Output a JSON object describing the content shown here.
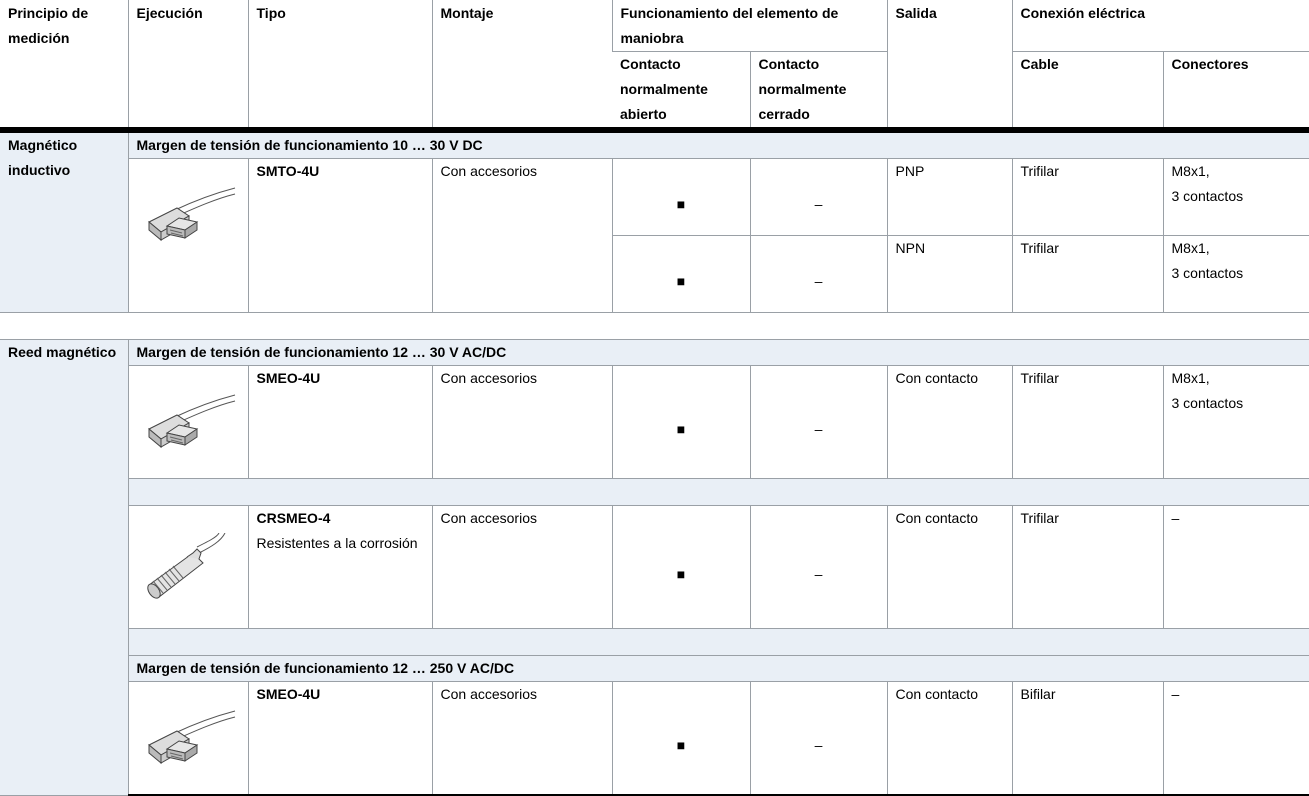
{
  "header": {
    "columns": [
      "Principio de medición",
      "Ejecución",
      "Tipo",
      "Montaje",
      "Funcionamiento del elemento de maniobra",
      "Salida",
      "Conexión eléctrica"
    ],
    "subcolumns": [
      "Contacto normalmente abierto",
      "Contacto normalmente cerrado",
      "Cable",
      "Conectores"
    ]
  },
  "sections": [
    {
      "principle": "Magnético inductivo",
      "groups": [
        {
          "voltage": "Margen de tensión de funcionamiento 10 … 30 V DC",
          "products": [
            {
              "type": "SMTO-4U",
              "mounting": "Con accesorios",
              "variants": [
                {
                  "no_contact": "■",
                  "nc_contact": "–",
                  "output": "PNP",
                  "cable": "Trifilar",
                  "connector": "M8x1,\n3 contactos"
                },
                {
                  "no_contact": "■",
                  "nc_contact": "–",
                  "output": "NPN",
                  "cable": "Trifilar",
                  "connector": "M8x1,\n3 contactos"
                }
              ]
            }
          ]
        }
      ]
    },
    {
      "principle": "Reed magnético",
      "groups": [
        {
          "voltage": "Margen de tensión de funcionamiento 12 … 30 V AC/DC",
          "products": [
            {
              "type": "SMEO-4U",
              "mounting": "Con accesorios",
              "variants": [
                {
                  "no_contact": "■",
                  "nc_contact": "–",
                  "output": "Con contacto",
                  "cable": "Trifilar",
                  "connector": "M8x1,\n3 contactos"
                }
              ]
            },
            {
              "type": "CRSMEO-4",
              "note": "Resistentes a la corrosión",
              "mounting": "Con accesorios",
              "variants": [
                {
                  "no_contact": "■",
                  "nc_contact": "–",
                  "output": "Con contacto",
                  "cable": "Trifilar",
                  "connector": "–"
                }
              ]
            }
          ]
        },
        {
          "voltage": "Margen de tensión de funcionamiento 12 … 250 V AC/DC",
          "products": [
            {
              "type": "SMEO-4U",
              "mounting": "Con accesorios",
              "variants": [
                {
                  "no_contact": "■",
                  "nc_contact": "–",
                  "output": "Con contacto",
                  "cable": "Bifilar",
                  "connector": "–"
                }
              ]
            }
          ]
        }
      ]
    }
  ]
}
